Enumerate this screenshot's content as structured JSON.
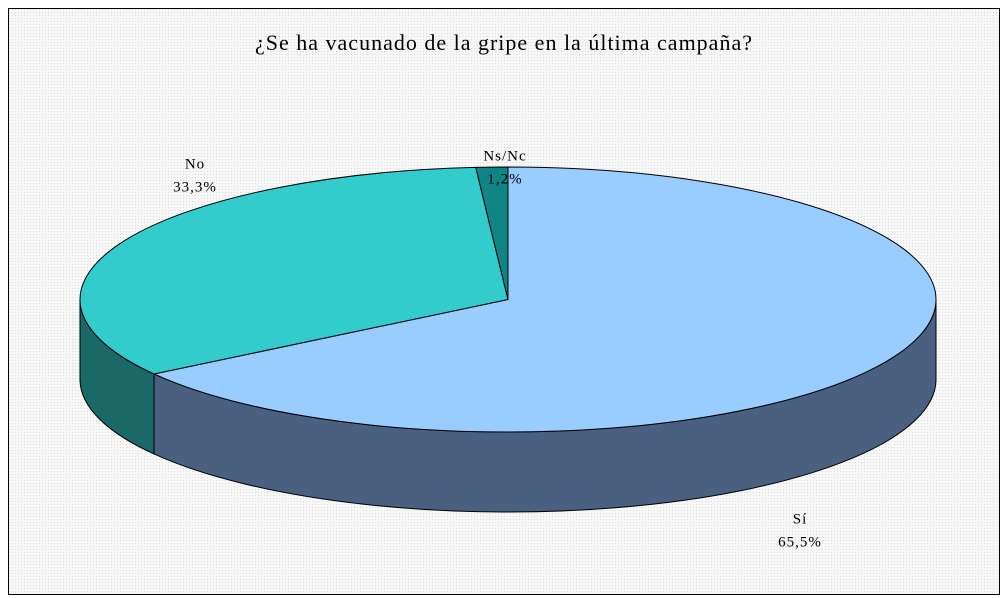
{
  "chart_data": {
    "type": "pie",
    "title": "¿Se ha vacunado de la gripe en la última campaña?",
    "categories": [
      "Sí",
      "No",
      "Ns/Nc"
    ],
    "values": [
      65.5,
      33.3,
      1.2
    ],
    "value_labels": [
      "65,5%",
      "33,3%",
      "1,2%"
    ],
    "colors": [
      "#99ccff",
      "#33cccc",
      "#108585"
    ],
    "side_colors": [
      "#4a6080",
      "#1a6868",
      "#0b5a5a"
    ]
  }
}
